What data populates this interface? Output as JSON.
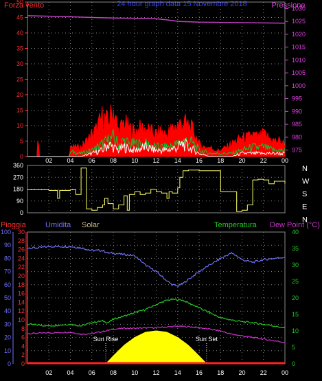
{
  "header": {
    "left_label": "Forza vento",
    "center_label": "24 hour graph data   15 Novembre 2018",
    "right_label": "Pressione"
  },
  "colors": {
    "background": "#000000",
    "grid": "#8a8a8a",
    "axis_red": "#ff3030",
    "axis_magenta": "#e040e0",
    "pressure": "#c040c0",
    "wind_gust": "#ff0000",
    "wind_avg": "#00cc33",
    "wind_speed": "#ffffff",
    "direction": "#ffff66",
    "humidity": "#7070ff",
    "solar": "#ffff00",
    "rain": "#ff2020",
    "temperature": "#22cc22",
    "dewpoint": "#cc33cc",
    "compass": "#ffffff"
  },
  "time_ticks": [
    "02",
    "04",
    "06",
    "08",
    "10",
    "12",
    "14",
    "16",
    "18",
    "20",
    "22",
    "00"
  ],
  "chart_data": [
    {
      "type": "line",
      "title": "24 hour graph data   15 Novembre 2018",
      "y_left_label": "Forza vento",
      "y_right_label": "Pressione",
      "y_left_ticks": [
        "0",
        "5",
        "10",
        "15",
        "20",
        "25",
        "30",
        "35",
        "40",
        "45",
        "50"
      ],
      "y_left_range": [
        0,
        50
      ],
      "y_right_ticks": [
        "975",
        "980",
        "985",
        "990",
        "995",
        "1000",
        "1005",
        "1010",
        "1015",
        "1020",
        "1025",
        "1030"
      ],
      "y_right_range": [
        972.5,
        1032.5
      ],
      "x_hours": [
        0,
        24
      ],
      "series": [
        {
          "key": "pressure",
          "axis": "right",
          "x": [
            0,
            2,
            4,
            6,
            8,
            10,
            12,
            13,
            14,
            16,
            18,
            20,
            22,
            24
          ],
          "y": [
            1027.2,
            1027.0,
            1026.8,
            1026.5,
            1026.3,
            1026.2,
            1026.0,
            1025.6,
            1025.0,
            1024.7,
            1024.6,
            1024.5,
            1024.4,
            1024.3
          ]
        },
        {
          "key": "wind_gust",
          "axis": "left",
          "x": [
            0,
            0.9,
            1.0,
            1.1,
            3.9,
            4.0,
            4.2,
            5,
            5.5,
            6,
            6.5,
            7,
            7.5,
            8,
            8.5,
            9,
            9.5,
            10,
            10.5,
            11,
            11.5,
            12,
            12.5,
            13,
            13.5,
            14,
            14.5,
            15,
            15.5,
            16,
            16.5,
            17,
            17.5,
            18,
            18.5,
            19,
            19.5,
            20,
            20.5,
            21,
            21.5,
            22,
            22.5,
            23,
            23.5,
            24
          ],
          "y": [
            0,
            0,
            8,
            0,
            0,
            4,
            3,
            3,
            5,
            7,
            9,
            13,
            11,
            15,
            8,
            11,
            9,
            8,
            9,
            9,
            8,
            7,
            8,
            7,
            9,
            10,
            11,
            10,
            8,
            4,
            3,
            3,
            2,
            2,
            3,
            4,
            5,
            6,
            6,
            7,
            6,
            7,
            6,
            5,
            5,
            4
          ]
        },
        {
          "key": "wind_avg",
          "axis": "left",
          "x": [
            0,
            3.9,
            4.0,
            5,
            6,
            6.5,
            7,
            7.5,
            8,
            8.5,
            9,
            9.5,
            10,
            11,
            12,
            13,
            14,
            14.5,
            15,
            15.5,
            16,
            17,
            18,
            19,
            20,
            21,
            22,
            23,
            24
          ],
          "y": [
            0,
            0,
            1.5,
            1,
            2,
            3,
            4,
            5,
            6,
            4,
            5,
            4,
            4,
            4,
            3,
            3,
            4,
            5,
            5,
            4,
            2,
            1,
            1,
            1,
            2,
            3,
            3,
            2,
            2
          ]
        },
        {
          "key": "wind_speed",
          "axis": "left",
          "x": [
            0,
            5,
            6,
            7,
            7.5,
            8,
            8.5,
            9,
            10,
            11,
            12,
            13,
            14,
            14.5,
            15,
            15.5,
            16,
            17,
            18,
            19,
            20,
            21,
            22,
            23,
            24
          ],
          "y": [
            0,
            0,
            1,
            2,
            4,
            3,
            2,
            3,
            2,
            3,
            2,
            2,
            3,
            4,
            3,
            2,
            1,
            0,
            0,
            0,
            1,
            1,
            1,
            1,
            1
          ]
        }
      ]
    },
    {
      "type": "line",
      "title": "",
      "y_left_ticks": [
        "0",
        "90",
        "180",
        "270",
        "360"
      ],
      "y_left_range": [
        0,
        360
      ],
      "y_right_ticks": [
        "N",
        "W",
        "S",
        "E",
        "N"
      ],
      "series": [
        {
          "key": "direction",
          "x": [
            0,
            1,
            2,
            2.8,
            3,
            3.5,
            4,
            4.3,
            4.5,
            5,
            5.5,
            6,
            6.5,
            7,
            7.2,
            7.5,
            8,
            8.5,
            9,
            9.3,
            9.5,
            10,
            10.5,
            11,
            11.5,
            12,
            12.5,
            13,
            13.2,
            13.5,
            14,
            14.2,
            14.5,
            15,
            16,
            17,
            17.5,
            18,
            18.5,
            19,
            19.5,
            20,
            20.5,
            21,
            21.5,
            22,
            22.5,
            23,
            24
          ],
          "y": [
            175,
            175,
            170,
            110,
            170,
            170,
            175,
            175,
            140,
            340,
            30,
            20,
            40,
            60,
            110,
            70,
            30,
            60,
            130,
            20,
            140,
            160,
            140,
            150,
            180,
            160,
            150,
            110,
            160,
            150,
            190,
            270,
            320,
            325,
            320,
            320,
            320,
            160,
            160,
            160,
            10,
            20,
            60,
            250,
            255,
            250,
            220,
            240,
            220
          ]
        }
      ]
    },
    {
      "type": "area",
      "title": "",
      "legend": [
        "Pioggia",
        "Umidita",
        "Solar",
        "Temperatura",
        "Dew Point (°C)"
      ],
      "y_axis_humidity_ticks": [
        "0",
        "10",
        "20",
        "30",
        "40",
        "50",
        "60",
        "70",
        "80",
        "90",
        "100"
      ],
      "y_axis_humidity_range": [
        0,
        100
      ],
      "y_axis_rain_ticks": [
        "0",
        "2",
        "4",
        "6",
        "8",
        "10",
        "12",
        "14",
        "16",
        "18",
        "20",
        "22",
        "24",
        "26",
        "28",
        "30"
      ],
      "y_axis_rain_range": [
        0,
        30
      ],
      "y_axis_temp_ticks": [
        "0",
        "5",
        "10",
        "15",
        "20",
        "25",
        "30",
        "35",
        "40"
      ],
      "y_axis_temp_range": [
        0,
        40
      ],
      "annotations": [
        "Sun Rise",
        "Sun Set"
      ],
      "sun_rise_hour": 7.3,
      "sun_set_hour": 16.7,
      "series": [
        {
          "key": "humidity",
          "name": "Umidita",
          "axis": "humidity",
          "x": [
            0,
            1,
            2,
            3,
            4,
            5,
            6,
            7,
            7.5,
            8,
            9,
            10,
            11,
            12,
            13,
            13.5,
            14,
            14.5,
            15,
            16,
            17,
            18,
            19,
            19.5,
            20,
            21,
            22,
            23,
            24
          ],
          "y": [
            88,
            88,
            89,
            89,
            89,
            88,
            86,
            86,
            84,
            84,
            83,
            82,
            75,
            70,
            63,
            60,
            59,
            61,
            64,
            70,
            75,
            80,
            84,
            82,
            79,
            77,
            79,
            80,
            81
          ]
        },
        {
          "key": "temperature",
          "name": "Temperatura",
          "axis": "temp",
          "x": [
            0,
            1,
            2,
            3,
            4,
            5,
            6,
            7,
            7.5,
            8,
            9,
            10,
            11,
            12,
            13,
            13.5,
            14,
            14.5,
            15,
            16,
            17,
            18,
            19,
            20,
            21,
            22,
            23,
            24
          ],
          "y": [
            12.0,
            11.8,
            11.5,
            11.8,
            12.0,
            11.5,
            12.5,
            13.0,
            12.5,
            13.5,
            14.5,
            15.5,
            16.5,
            18.0,
            19.3,
            19.5,
            19.5,
            19.3,
            18.5,
            17.0,
            15.5,
            14.0,
            13.3,
            12.8,
            12.5,
            12.0,
            11.5,
            10.8
          ]
        },
        {
          "key": "dewpoint",
          "name": "Dew Point (°C)",
          "axis": "temp",
          "x": [
            0,
            1,
            2,
            3,
            4,
            5,
            6,
            7,
            8,
            9,
            10,
            11,
            12,
            13,
            14,
            15,
            16,
            17,
            18,
            19,
            20,
            21,
            22,
            23,
            24
          ],
          "y": [
            9.2,
            9.3,
            9.4,
            9.5,
            9.6,
            9.0,
            9.2,
            9.8,
            10.5,
            10.8,
            10.8,
            10.9,
            11.0,
            11.2,
            11.4,
            11.3,
            11.0,
            10.5,
            10.0,
            9.0,
            8.5,
            8.0,
            7.5,
            7.0,
            6.5
          ]
        },
        {
          "key": "solar",
          "name": "Solar",
          "axis": "humidity",
          "x": [
            7.3,
            8,
            9,
            10,
            11,
            12,
            13,
            14,
            15,
            16,
            16.7
          ],
          "y": [
            0,
            6,
            14,
            20,
            24,
            25,
            24,
            20,
            14,
            6,
            0
          ]
        },
        {
          "key": "rain",
          "name": "Pioggia",
          "axis": "rain",
          "x": [
            0,
            24
          ],
          "y": [
            0,
            0
          ]
        }
      ]
    }
  ]
}
